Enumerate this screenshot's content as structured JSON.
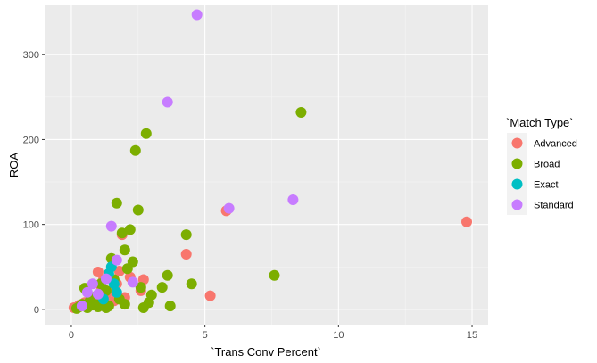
{
  "chart_data": {
    "type": "scatter",
    "title": "",
    "xlabel": "`Trans Conv Percent`",
    "ylabel": "ROA",
    "xlim": [
      -1.0,
      15.6
    ],
    "ylim": [
      -18,
      358
    ],
    "x_ticks": [
      0,
      5,
      10,
      15
    ],
    "x_tick_labels": [
      "0",
      "5",
      "10",
      "15"
    ],
    "y_ticks": [
      0,
      100,
      200,
      300
    ],
    "y_tick_labels": [
      "0",
      "100",
      "200",
      "300"
    ],
    "grid": true,
    "legend": {
      "title": "`Match Type`",
      "position": "right"
    },
    "series": [
      {
        "name": "Advanced",
        "color": "#F8766D",
        "points": [
          [
            0.1,
            2
          ],
          [
            0.3,
            5
          ],
          [
            0.5,
            8
          ],
          [
            0.6,
            3
          ],
          [
            0.8,
            12
          ],
          [
            1.0,
            44
          ],
          [
            1.1,
            28
          ],
          [
            1.2,
            35
          ],
          [
            1.3,
            18
          ],
          [
            1.4,
            6
          ],
          [
            1.5,
            22
          ],
          [
            1.6,
            10
          ],
          [
            1.7,
            30
          ],
          [
            1.8,
            45
          ],
          [
            1.9,
            88
          ],
          [
            2.0,
            14
          ],
          [
            2.2,
            38
          ],
          [
            2.6,
            22
          ],
          [
            2.7,
            35
          ],
          [
            4.3,
            65
          ],
          [
            5.2,
            16
          ],
          [
            5.8,
            116
          ],
          [
            14.8,
            103
          ]
        ]
      },
      {
        "name": "Broad",
        "color": "#7CAE00",
        "points": [
          [
            0.2,
            1
          ],
          [
            0.3,
            3
          ],
          [
            0.4,
            6
          ],
          [
            0.5,
            25
          ],
          [
            0.6,
            2
          ],
          [
            0.7,
            10
          ],
          [
            0.8,
            5
          ],
          [
            0.9,
            15
          ],
          [
            1.0,
            3
          ],
          [
            1.1,
            30
          ],
          [
            1.2,
            8
          ],
          [
            1.3,
            22
          ],
          [
            1.4,
            4
          ],
          [
            1.5,
            60
          ],
          [
            1.6,
            35
          ],
          [
            1.7,
            125
          ],
          [
            1.8,
            12
          ],
          [
            1.9,
            90
          ],
          [
            2.0,
            70
          ],
          [
            2.1,
            48
          ],
          [
            2.2,
            94
          ],
          [
            2.3,
            56
          ],
          [
            2.4,
            187
          ],
          [
            2.5,
            117
          ],
          [
            2.6,
            26
          ],
          [
            2.7,
            2
          ],
          [
            2.8,
            207
          ],
          [
            2.9,
            8
          ],
          [
            3.0,
            17
          ],
          [
            3.4,
            26
          ],
          [
            3.6,
            40
          ],
          [
            3.7,
            4
          ],
          [
            4.3,
            88
          ],
          [
            4.5,
            30
          ],
          [
            7.6,
            40
          ],
          [
            8.6,
            232
          ],
          [
            1.0,
            8
          ],
          [
            1.3,
            2
          ],
          [
            2.0,
            6
          ]
        ]
      },
      {
        "name": "Exact",
        "color": "#00BFC4",
        "points": [
          [
            1.4,
            42
          ],
          [
            1.5,
            50
          ],
          [
            1.6,
            30
          ],
          [
            1.7,
            20
          ],
          [
            1.2,
            12
          ]
        ]
      },
      {
        "name": "Standard",
        "color": "#C77CFF",
        "points": [
          [
            0.4,
            4
          ],
          [
            0.6,
            20
          ],
          [
            0.8,
            30
          ],
          [
            1.0,
            18
          ],
          [
            1.3,
            36
          ],
          [
            1.5,
            98
          ],
          [
            1.7,
            58
          ],
          [
            2.3,
            32
          ],
          [
            3.6,
            244
          ],
          [
            4.7,
            347
          ],
          [
            5.9,
            119
          ],
          [
            8.3,
            129
          ]
        ]
      }
    ]
  }
}
